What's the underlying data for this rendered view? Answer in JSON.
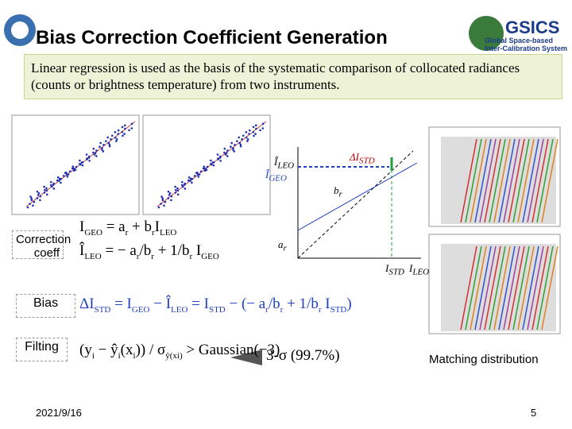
{
  "header": {
    "title": "Bias Correction Coefficient  Generation",
    "logo": {
      "name": "GSICS",
      "tagline_1": "Global Space-based",
      "tagline_2": "Inter-Calibration System"
    }
  },
  "intro": "Linear regression is used as the basis of the systematic comparison of collocated radiances (counts or brightness temperature) from two instruments.",
  "diagram": {
    "labels": [
      {
        "parts": [
          {
            "t": "ΔI",
            "s": "STD"
          }
        ]
      },
      {
        "parts": [
          {
            "t": "Î",
            "s": "LEO"
          }
        ]
      },
      {
        "parts": [
          {
            "t": "Î",
            "s": "GEO"
          }
        ]
      },
      {
        "parts": [
          {
            "t": "b",
            "s": "r"
          }
        ]
      },
      {
        "parts": [
          {
            "t": "a",
            "s": "r"
          }
        ]
      },
      {
        "parts": [
          {
            "t": "I",
            "s": "STD"
          }
        ]
      },
      {
        "parts": [
          {
            "t": "I",
            "s": "LEO"
          }
        ]
      }
    ]
  },
  "sections": [
    {
      "label": "Correction coeff",
      "equations": [
        {
          "parts": [
            {
              "t": "I",
              "s": "GEO"
            },
            {
              "t": " = a",
              "s": "r"
            },
            {
              "t": " + b",
              "s": "r"
            },
            {
              "t": "I",
              "s": "LEO"
            }
          ]
        },
        {
          "parts": [
            {
              "t": "Î",
              "s": "LEO"
            },
            {
              "t": " = − a",
              "s": "r"
            },
            {
              "t": "/b",
              "s": "r"
            },
            {
              "t": " + 1/b",
              "s": "r"
            },
            {
              "t": " I",
              "s": "GEO"
            }
          ]
        }
      ]
    },
    {
      "label": "Bias",
      "equations": [
        {
          "parts": [
            {
              "t": "ΔI",
              "s": "STD"
            },
            {
              "t": " = I",
              "s": "GEO"
            },
            {
              "t": " − Î",
              "s": "LEO"
            },
            {
              "t": " = I",
              "s": "STD"
            },
            {
              "t": " − (− a",
              "s": "r"
            },
            {
              "t": "/b",
              "s": "r"
            },
            {
              "t": " + 1/b",
              "s": "r"
            },
            {
              "t": " I",
              "s": "STD"
            },
            {
              "t": ")"
            }
          ]
        }
      ]
    },
    {
      "label": "Filting",
      "equations": [
        {
          "parts": [
            {
              "t": "(y",
              "s": "i"
            },
            {
              "t": " − ŷ",
              "s": "i"
            },
            {
              "t": "(x",
              "s": "i"
            },
            {
              "t": ")) / σ",
              "s": "ŷ(xi)"
            },
            {
              "t": " > Gaussian(−3)"
            }
          ]
        },
        {
          "parts": [
            {
              "t": "3-σ (99.7%)"
            }
          ]
        }
      ]
    }
  ],
  "maps_caption": "Matching distribution",
  "footer": {
    "date": "2021/9/16",
    "page": "5"
  }
}
